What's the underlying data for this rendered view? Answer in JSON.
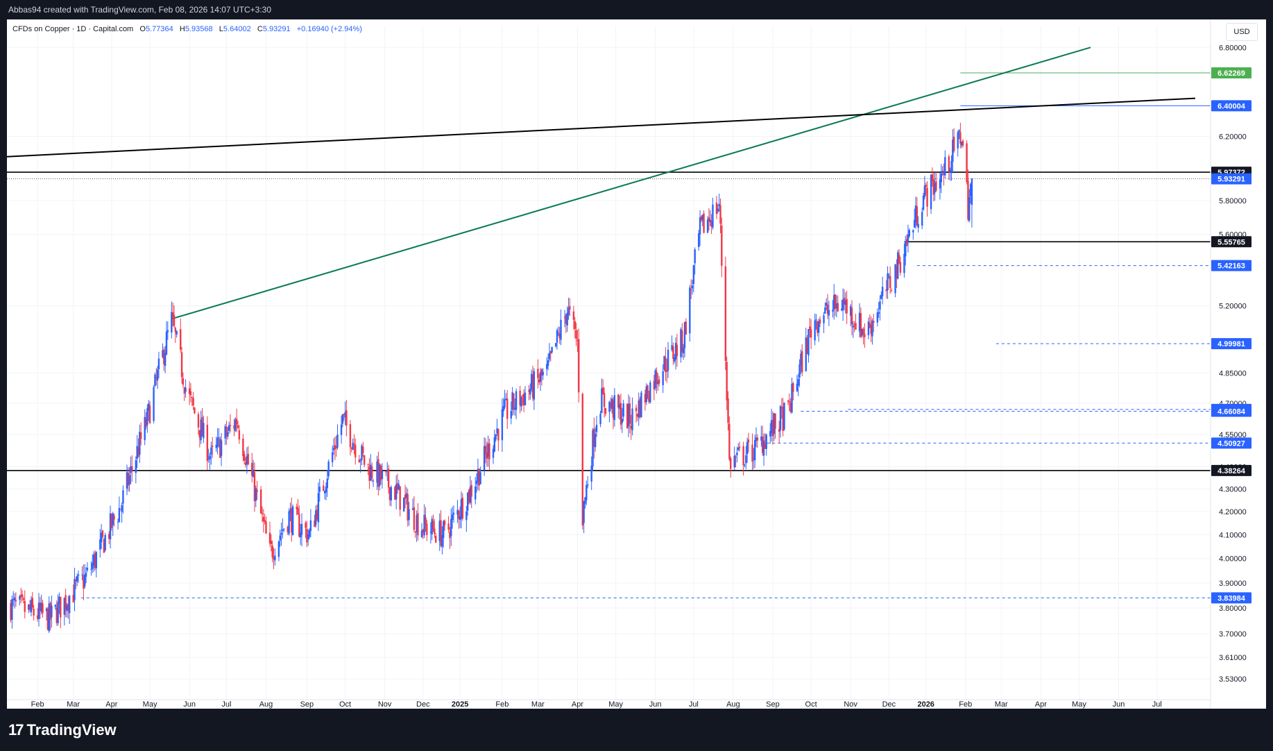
{
  "header": {
    "attribution": "Abbas94 created with TradingView.com, Feb 08, 2026 14:07 UTC+3:30"
  },
  "legend": {
    "symbol": "CFDs on Copper · 1D · Capital.com",
    "o_label": "O",
    "o": "5.77364",
    "h_label": "H",
    "h": "5.93568",
    "l_label": "L",
    "l": "5.64002",
    "c_label": "C",
    "c": "5.93291",
    "change": "+0.16940 (+2.94%)"
  },
  "currency_button": "USD",
  "footer": {
    "brand": "TradingView",
    "logo_mark": "17"
  },
  "colors": {
    "up": "#2962ff",
    "down": "#f23645",
    "trend": "#0b7a55",
    "dark": "#000000",
    "green_label": "#4caf50",
    "blue_label": "#2962ff"
  },
  "chart_data": {
    "type": "candlestick",
    "symbol": "CFDs on Copper",
    "interval": "1D",
    "y_scale": "log",
    "ylim": [
      3.48,
      6.95
    ],
    "price_ticks": [
      "6.80000",
      "6.20000",
      "5.80000",
      "5.60000",
      "5.20000",
      "4.85000",
      "4.70000",
      "4.55000",
      "4.40000",
      "4.30000",
      "4.20000",
      "4.10000",
      "4.00000",
      "3.90000",
      "3.80000",
      "3.70000",
      "3.61000",
      "3.53000"
    ],
    "time_labels": [
      "Feb",
      "Mar",
      "Apr",
      "May",
      "Jun",
      "Jul",
      "Aug",
      "Sep",
      "Oct",
      "Nov",
      "Dec",
      "2025",
      "Feb",
      "Mar",
      "Apr",
      "May",
      "Jun",
      "Jul",
      "Aug",
      "Sep",
      "Oct",
      "Nov",
      "Dec",
      "2026",
      "Feb",
      "Mar",
      "Apr",
      "May",
      "Jun",
      "Jul"
    ],
    "bold_time_labels": [
      "2025",
      "2026"
    ],
    "price_anchors": [
      {
        "date": "2024-01-15",
        "price": 3.81
      },
      {
        "date": "2024-02-15",
        "price": 3.76
      },
      {
        "date": "2024-03-15",
        "price": 3.93
      },
      {
        "date": "2024-04-10",
        "price": 4.22
      },
      {
        "date": "2024-05-01",
        "price": 4.62
      },
      {
        "date": "2024-05-20",
        "price": 5.12
      },
      {
        "date": "2024-06-01",
        "price": 4.75
      },
      {
        "date": "2024-06-20",
        "price": 4.44
      },
      {
        "date": "2024-07-10",
        "price": 4.62
      },
      {
        "date": "2024-08-05",
        "price": 4.02
      },
      {
        "date": "2024-08-20",
        "price": 4.18
      },
      {
        "date": "2024-09-05",
        "price": 4.1
      },
      {
        "date": "2024-10-01",
        "price": 4.62
      },
      {
        "date": "2024-10-20",
        "price": 4.4
      },
      {
        "date": "2024-11-10",
        "price": 4.3
      },
      {
        "date": "2024-12-01",
        "price": 4.14
      },
      {
        "date": "2024-12-20",
        "price": 4.1
      },
      {
        "date": "2025-01-10",
        "price": 4.3
      },
      {
        "date": "2025-02-05",
        "price": 4.65
      },
      {
        "date": "2025-03-10",
        "price": 4.85
      },
      {
        "date": "2025-03-26",
        "price": 5.18
      },
      {
        "date": "2025-04-03",
        "price": 5.0
      },
      {
        "date": "2025-04-07",
        "price": 4.18
      },
      {
        "date": "2025-04-20",
        "price": 4.72
      },
      {
        "date": "2025-05-15",
        "price": 4.62
      },
      {
        "date": "2025-06-05",
        "price": 4.85
      },
      {
        "date": "2025-06-25",
        "price": 5.02
      },
      {
        "date": "2025-07-08",
        "price": 5.62
      },
      {
        "date": "2025-07-23",
        "price": 5.78
      },
      {
        "date": "2025-07-31",
        "price": 4.42
      },
      {
        "date": "2025-08-20",
        "price": 4.48
      },
      {
        "date": "2025-09-15",
        "price": 4.66
      },
      {
        "date": "2025-10-05",
        "price": 5.12
      },
      {
        "date": "2025-10-28",
        "price": 5.22
      },
      {
        "date": "2025-11-15",
        "price": 5.05
      },
      {
        "date": "2025-12-10",
        "price": 5.42
      },
      {
        "date": "2025-12-30",
        "price": 5.82
      },
      {
        "date": "2026-01-15",
        "price": 5.97
      },
      {
        "date": "2026-01-29",
        "price": 6.22
      },
      {
        "date": "2026-02-03",
        "price": 5.77
      },
      {
        "date": "2026-02-06",
        "price": 5.93291
      }
    ],
    "last_ohlc": {
      "open": 5.77364,
      "high": 5.93568,
      "low": 5.64002,
      "close": 5.93291
    },
    "trendlines": [
      {
        "name": "Rising support trend",
        "color": "#0b7a55",
        "from": {
          "date": "2024-05-20",
          "price": 5.13
        },
        "to": {
          "date": "2026-05-10",
          "price": 6.8
        }
      },
      {
        "name": "Upper resistance trend",
        "color": "#000000",
        "from": {
          "date": "2024-01-10",
          "price": 6.07
        },
        "to": {
          "date": "2026-07-31",
          "price": 6.45
        }
      }
    ],
    "horizontal_levels": [
      {
        "price": 6.62269,
        "label": "6.62269",
        "style": "solid-green",
        "label_bg": "#4caf50",
        "from": "2026-01-28"
      },
      {
        "price": 6.40004,
        "label": "6.40004",
        "style": "solid-blue",
        "label_bg": "#2962ff",
        "from": "2026-01-28"
      },
      {
        "price": 5.97372,
        "label": "5.97372",
        "style": "solid-black",
        "label_bg": "#131722"
      },
      {
        "price": 5.93291,
        "label": "5.93291",
        "style": "dotted-current",
        "label_bg": "#2962ff"
      },
      {
        "price": 5.55765,
        "label": "5.55765",
        "style": "solid-black",
        "label_bg": "#131722",
        "from": "2025-12-15"
      },
      {
        "price": 5.42163,
        "label": "5.42163",
        "style": "dashed-blue",
        "label_bg": "#2962ff",
        "from": "2025-12-25"
      },
      {
        "price": 4.99981,
        "label": "4.99981",
        "style": "dashed-blue",
        "label_bg": "#2962ff",
        "from": "2026-02-25"
      },
      {
        "price": 4.66982,
        "label": "4.66982",
        "style": "dashed-blue",
        "label_bg": "#2962ff",
        "from": "2025-11-01"
      },
      {
        "price": 4.66084,
        "label": "4.66084",
        "style": "dashed-blue",
        "label_bg": "#2962ff",
        "from": "2025-09-25"
      },
      {
        "price": 4.50927,
        "label": "4.50927",
        "style": "dashed-blue",
        "label_bg": "#2962ff",
        "from": "2025-08-25"
      },
      {
        "price": 4.38264,
        "label": "4.38264",
        "style": "solid-black",
        "label_bg": "#131722"
      },
      {
        "price": 3.83984,
        "label": "3.83984",
        "style": "dashed-blue",
        "label_bg": "#2962ff",
        "from": "2024-03-10"
      }
    ]
  }
}
